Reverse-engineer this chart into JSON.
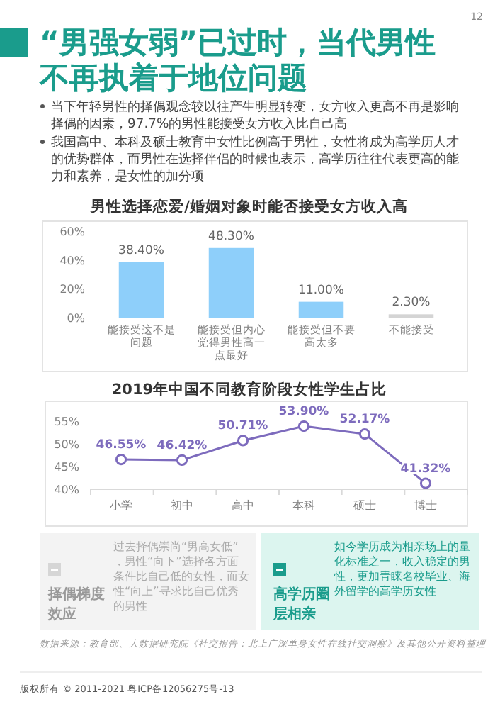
{
  "chart_data": [
    {
      "type": "other",
      "title": "“男强女弱”已过时，当代男性不再执着于地位问题",
      "annotations": [
        "当下年轻男性的择偶观念较以往产生明显转变，女方收入更高不再是影响择偶的因素，97.7%的男性能接受女方收入比自己高",
        "我国高中、本科及硕士教育中女性比例高于男性，女性将成为高学历人才的优势群体，而男性在选择伴侣的时候也表示，高学历往往代表更高的能力和素养，是女性的加分项",
        "12"
      ]
    },
    {
      "type": "bar",
      "title": "男性选择恋爱/婚姻对象时能否接受女方收入高",
      "categories": [
        "能接受这不是问题",
        "能接受但内心觉得男性高一点最好",
        "能接受但不要高太多",
        "不能接受"
      ],
      "values": [
        38.4,
        48.3,
        11.0,
        2.3
      ],
      "colors": [
        "#8ecffa",
        "#8ecffa",
        "#8ecffa",
        "#d4d4d4"
      ],
      "value_labels": [
        "38.40%",
        "48.30%",
        "11.00%",
        "2.30%"
      ],
      "ylim": [
        0,
        60
      ],
      "yticks": [
        {
          "value": 0,
          "label": "0%"
        },
        {
          "value": 20,
          "label": "20%"
        },
        {
          "value": 40,
          "label": "40%"
        },
        {
          "value": 60,
          "label": "60%"
        }
      ]
    },
    {
      "type": "line",
      "title": "2019年中国不同教育阶段女性学生占比",
      "categories": [
        "小学",
        "初中",
        "高中",
        "本科",
        "硕士",
        "博士"
      ],
      "values": [
        46.55,
        46.42,
        50.71,
        53.9,
        52.17,
        41.32
      ],
      "color": "#7d6bbd",
      "marker": "circle",
      "value_labels": [
        "46.55%",
        "46.42%",
        "50.71%",
        "53.90%",
        "52.17%",
        "41.32%"
      ],
      "ylim": [
        40,
        55
      ],
      "yticks": [
        {
          "value": 40,
          "label": "40%"
        },
        {
          "value": 45,
          "label": "45%"
        },
        {
          "value": 50,
          "label": "50%"
        },
        {
          "value": 55,
          "label": "55%"
        }
      ]
    },
    {
      "type": "other",
      "annotations": [
        "择偶梯度效应",
        "过去择偶崇尚“男高女低”，男性“向下”选择各方面条件比自己低的女性，而女性“向上”寻求比自己优秀的男性",
        "高学历圈层相亲",
        "如今学历成为相亲场上的量化标准之一，收入稳定的男性，更加青睐名校毕业、海外留学的高学历女性",
        "数据来源：教育部、大数据研究院《社交报告：北上广深单身女性在线社交洞察》及其他公开资料整理",
        "版权所有 © 2011-2021 粤ICP备12056275号-13"
      ]
    }
  ]
}
